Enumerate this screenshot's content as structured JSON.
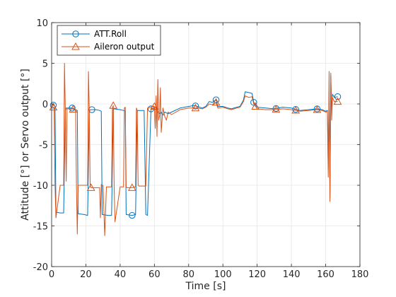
{
  "chart_data": {
    "type": "line",
    "title": "",
    "xlabel": "Time [s]",
    "ylabel": "Attitude [°] or Servo output [°]",
    "xlim": [
      0,
      180
    ],
    "ylim": [
      -20,
      10
    ],
    "xticks": [
      0,
      20,
      40,
      60,
      80,
      100,
      120,
      140,
      160,
      180
    ],
    "yticks": [
      -20,
      -15,
      -10,
      -5,
      0,
      5,
      10
    ],
    "grid": true,
    "legend_position": "top-left",
    "series": [
      {
        "name": "ATT.Roll",
        "color": "#0072BD",
        "marker": "circle",
        "x": [
          0,
          2,
          2.5,
          5,
          7,
          8,
          8.5,
          12,
          14,
          15,
          15.5,
          19,
          21,
          22,
          22.5,
          26,
          28,
          29,
          29.5,
          33,
          35,
          36,
          36.5,
          40,
          42,
          43,
          43.5,
          47,
          49,
          50,
          50.5,
          54,
          55,
          56,
          58,
          60,
          61,
          62,
          63,
          64,
          65,
          66,
          68,
          70,
          75,
          80,
          83,
          85,
          88,
          90,
          92,
          94,
          95,
          96,
          97,
          100,
          103,
          105,
          108,
          110,
          112,
          113,
          115,
          117,
          118,
          120,
          125,
          130,
          135,
          140,
          143,
          145,
          150,
          155,
          158,
          160,
          161,
          161.5,
          162,
          162.5,
          163,
          163.5,
          164,
          165,
          167
        ],
        "y": [
          0,
          -0.3,
          -13.3,
          -13.4,
          -13.4,
          -0.8,
          -0.5,
          -0.5,
          -0.7,
          -0.8,
          -13.5,
          -13.6,
          -13.7,
          -0.9,
          -0.7,
          -0.7,
          -0.8,
          -0.9,
          -13.6,
          -13.7,
          -13.7,
          -0.7,
          -0.6,
          -0.7,
          -0.8,
          -0.9,
          -13.6,
          -13.7,
          -13.6,
          -0.9,
          -0.8,
          -0.8,
          -13.6,
          -13.7,
          -0.6,
          -0.5,
          -0.3,
          -1.0,
          -1.2,
          -1.0,
          -1.4,
          -1.0,
          -1.2,
          -1.0,
          -0.5,
          -0.3,
          -0.2,
          -0.3,
          -0.5,
          -0.3,
          0.3,
          0.2,
          0.4,
          0.5,
          -0.3,
          -0.3,
          -0.5,
          -0.6,
          -0.4,
          -0.3,
          0.5,
          1.5,
          1.4,
          1.3,
          0.2,
          -0.4,
          -0.5,
          -0.6,
          -0.4,
          -0.5,
          -0.7,
          -0.8,
          -0.7,
          -0.6,
          -0.7,
          -0.9,
          -0.8,
          -8.0,
          1.5,
          -11.5,
          3.5,
          -1.0,
          1.2,
          0.8,
          0.9
        ]
      },
      {
        "name": "Aileron output",
        "color": "#D95319",
        "marker": "triangle",
        "x": [
          0,
          1.5,
          2,
          2.5,
          5,
          6,
          7,
          7.5,
          8,
          8.5,
          9,
          12,
          14,
          14.5,
          15,
          15.5,
          18,
          20,
          21,
          21.5,
          22,
          22.5,
          23,
          26,
          28,
          28.5,
          29,
          29.5,
          30,
          31,
          32,
          33,
          35,
          35.5,
          36,
          36.5,
          37,
          40,
          42,
          42.5,
          43,
          43.5,
          44,
          47,
          49,
          49.5,
          50,
          50.5,
          51,
          54,
          55,
          56,
          58,
          59,
          60,
          60.5,
          61,
          61.5,
          62,
          62.5,
          63,
          63.5,
          64,
          65,
          66,
          67,
          68,
          70,
          75,
          80,
          83,
          85,
          88,
          90,
          92,
          94,
          95,
          96,
          97,
          100,
          103,
          105,
          108,
          110,
          112,
          113,
          115,
          117,
          118,
          120,
          125,
          130,
          135,
          140,
          143,
          145,
          150,
          155,
          158,
          160,
          161,
          161.5,
          162,
          162.5,
          163,
          163.5,
          164,
          165,
          167
        ],
        "y": [
          -0.2,
          -0.5,
          -10.0,
          -14.0,
          -10.0,
          -10.0,
          -10.0,
          5.0,
          -0.8,
          -9.5,
          -0.6,
          -0.6,
          -0.8,
          -10.0,
          -16.0,
          -10.0,
          -10.0,
          -10.0,
          -10.0,
          4.0,
          -0.9,
          -10.0,
          -10.3,
          -10.3,
          -10.3,
          -14.0,
          -9.9,
          -10.0,
          -10.0,
          -16.2,
          -10.2,
          -10.2,
          -10.2,
          -0.5,
          -0.2,
          -10.2,
          -14.5,
          -10.2,
          -10.2,
          -0.5,
          -0.4,
          -10.2,
          -10.3,
          -10.3,
          -10.2,
          -0.5,
          -0.8,
          -10.0,
          -10.1,
          -10.1,
          -10.1,
          -0.5,
          -0.4,
          -0.3,
          -0.3,
          -3.0,
          1.0,
          -4.0,
          3.0,
          -2.0,
          -1.5,
          2.0,
          -3.5,
          -0.5,
          -1.5,
          -2.0,
          -1.0,
          -1.3,
          -0.7,
          -0.5,
          -0.5,
          -0.5,
          -0.6,
          -0.4,
          0.0,
          -0.1,
          0.0,
          0.2,
          -0.5,
          -0.4,
          -0.6,
          -0.7,
          -0.5,
          -0.4,
          0.3,
          1.0,
          0.8,
          0.9,
          0.0,
          -0.6,
          -0.7,
          -0.7,
          -0.6,
          -0.7,
          -0.8,
          -0.9,
          -0.8,
          -0.7,
          -0.8,
          -1.0,
          -0.9,
          -9.0,
          4.0,
          -12.0,
          3.8,
          -2.0,
          0.8,
          0.3,
          0.3
        ]
      }
    ]
  }
}
